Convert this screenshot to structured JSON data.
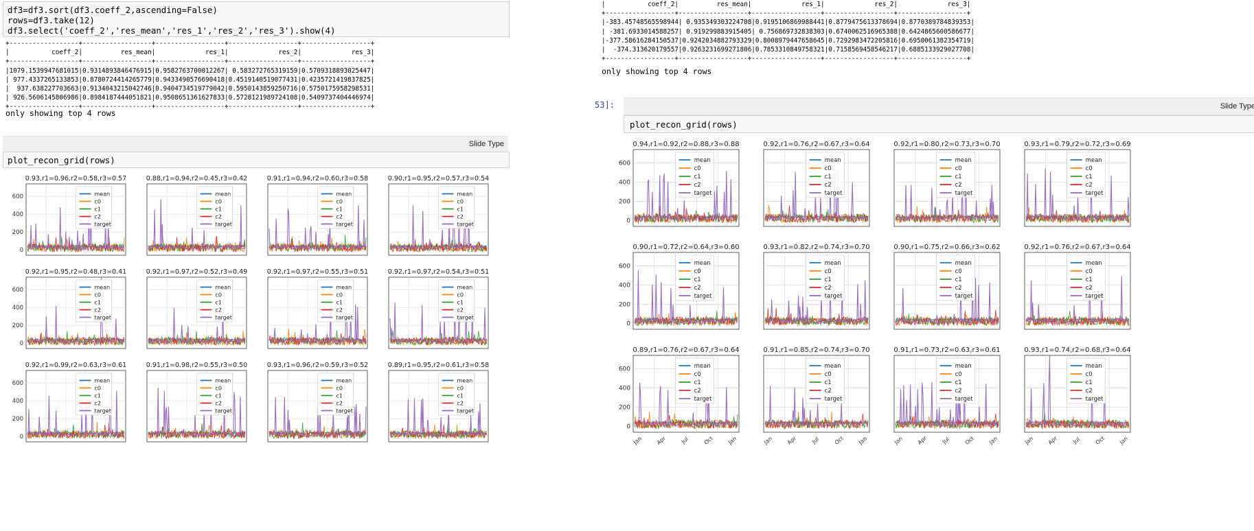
{
  "left": {
    "code_lines": [
      "df3=df3.sort(df3.coeff_2,ascending=False)",
      "rows=df3.take(12)",
      "df3.select('coeff_2','res_mean','res_1','res_2','res_3').show(4)"
    ],
    "table_text": "+------------------+------------------+------------------+------------------+------------------+\n|           coeff_2|          res_mean|             res_1|             res_2|             res_3|\n+------------------+------------------+------------------+------------------+------------------+\n|1079.1539947681015|0.9314893846476915|0.9582763700012267| 0.583272765319159|0.5709318893025447|\n| 977.4337265133853|0.8780724414265779|0.9433490576690418|0.4519140519077431|0.4235721419837825|\n|  937.638227703663|0.9134043215042746|0.9404734519779042|0.5950143859250716|0.5750175958298531|\n| 926.5606145806986|0.8984187444051821|0.9508651361627833|0.5728121989724108|0.5409737404446974|\n+------------------+------------------+------------------+------------------+------------------+",
    "footer": "only showing top 4 rows",
    "slide_type": "Slide Type",
    "plot_cmd": "plot_recon_grid(rows)"
  },
  "right": {
    "table_text": "|           coeff_2|          res_mean|             res_1|             res_2|             res_3|\n+------------------+------------------+------------------+------------------+------------------+\n|-383.45748565598944| 0.935349303224708|0.9195106869988441|0.8779475613378694|0.8770389784839353|\n| -381.6933014588257| 0.919299883915405| 0.756869732838303|0.6740062516965388|0.6424865600586677|\n|-377.58616284150537|0.9242034882793329|0.8008979447658645|0.7292983472205816|0.6950061382354719|\n|  -374.313620179557|0.9263231699271806|0.7853310849758321|0.7158569458546217|0.6885133929027708|\n+------------------+------------------+------------------+------------------+------------------+",
    "footer": "only showing top 4 rows",
    "prompt": "53]:",
    "slide_type": "Slide Type",
    "plot_cmd": "plot_recon_grid(rows)"
  },
  "colors": {
    "mean": "#1f77b4",
    "c0": "#ff7f0e",
    "c1": "#2ca02c",
    "c2": "#d62728",
    "target": "#9467bd"
  },
  "chart_data": [
    {
      "type": "line",
      "side": "left",
      "titles": [
        "0.93,r1=0.96,r2=0.58,r3=0.57",
        "0.88,r1=0.94,r2=0.45,r3=0.42",
        "0.91,r1=0.94,r2=0.60,r3=0.58",
        "0.90,r1=0.95,r2=0.57,r3=0.54",
        "0.92,r1=0.95,r2=0.48,r3=0.41",
        "0.92,r1=0.97,r2=0.52,r3=0.49",
        "0.92,r1=0.97,r2=0.55,r3=0.51",
        "0.92,r1=0.97,r2=0.54,r3=0.51",
        "0.92,r1=0.99,r2=0.63,r3=0.61",
        "0.91,r1=0.98,r2=0.55,r3=0.50",
        "0.93,r1=0.96,r2=0.59,r3=0.52",
        "0.89,r1=0.95,r2=0.61,r3=0.58"
      ],
      "legend": [
        "mean",
        "c0",
        "c1",
        "c2",
        "target"
      ],
      "y_ticks": [
        0,
        200,
        400,
        600
      ],
      "ylim": [
        -60,
        740
      ],
      "x_ticks": [],
      "grid": true,
      "legend_loc": "upper center"
    },
    {
      "type": "line",
      "side": "right",
      "titles": [
        "0.94,r1=0.92,r2=0.88,r3=0.88",
        "0.92,r1=0.76,r2=0.67,r3=0.64",
        "0.92,r1=0.80,r2=0.73,r3=0.70",
        "0.93,r1=0.79,r2=0.72,r3=0.69",
        "0.90,r1=0.72,r2=0.64,r3=0.60",
        "0.93,r1=0.82,r2=0.74,r3=0.70",
        "0.90,r1=0.75,r2=0.66,r3=0.62",
        "0.92,r1=0.76,r2=0.67,r3=0.64",
        "0.89,r1=0.76,r2=0.67,r3=0.64",
        "0.91,r1=0.85,r2=0.74,r3=0.70",
        "0.91,r1=0.73,r2=0.63,r3=0.61",
        "0.93,r1=0.74,r2=0.68,r3=0.64"
      ],
      "legend": [
        "mean",
        "c0",
        "c1",
        "c2",
        "target"
      ],
      "y_ticks": [
        0,
        200,
        400,
        600
      ],
      "ylim": [
        -60,
        740
      ],
      "x_ticks": [
        "Jan",
        "Apr",
        "Jul",
        "Oct",
        "Jan"
      ],
      "grid": true,
      "legend_loc": "upper center"
    }
  ]
}
